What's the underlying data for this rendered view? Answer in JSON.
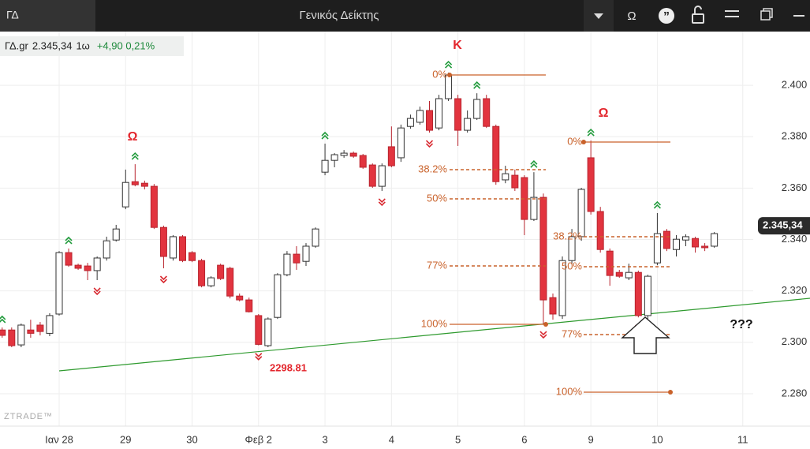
{
  "header": {
    "tab": "ΓΔ",
    "title": "Γενικός Δείκτης",
    "font_button": "Ω"
  },
  "chart_data": {
    "type": "candlestick",
    "info": {
      "symbol": "ΓΔ.gr",
      "price": "2.345,34",
      "interval": "1ω",
      "change": "+4,90 0,21%"
    },
    "watermark": "ZTRADE™",
    "last_price": {
      "value": 2345.34,
      "label": "2.345,34"
    },
    "up_color": "#ffffff",
    "down_color": "#e2343f",
    "grid": true,
    "x": [
      -6,
      -5,
      -4,
      -3,
      -2,
      -1,
      0,
      1,
      2,
      3,
      4,
      5,
      6,
      7,
      8,
      9,
      10,
      11,
      12,
      13,
      14,
      15,
      16,
      17,
      18,
      19,
      20,
      21,
      22,
      23,
      24,
      25,
      26,
      27,
      28,
      29,
      30,
      31,
      32,
      33,
      34,
      35,
      36,
      37,
      38,
      39,
      40,
      41,
      42,
      43,
      44,
      45,
      46,
      47,
      48,
      49,
      50,
      51,
      52,
      53,
      54,
      55,
      56,
      57,
      58,
      59,
      60,
      61,
      62,
      63,
      64,
      65,
      66,
      67,
      68,
      69
    ],
    "open": [
      2304.8,
      2304.8,
      2299.0,
      2304.8,
      2306.7,
      2303.5,
      2311.0,
      2334.9,
      2330.0,
      2329.7,
      2327.9,
      2332.8,
      2339.8,
      2352.7,
      2362.5,
      2361.9,
      2360.7,
      2344.7,
      2332.8,
      2341.1,
      2334.9,
      2331.8,
      2322.0,
      2330.0,
      2328.8,
      2318.0,
      2316.5,
      2310.4,
      2298.7,
      2309.7,
      2326.3,
      2334.3,
      2331.5,
      2337.4,
      2366.2,
      2370.8,
      2372.7,
      2373.6,
      2372.7,
      2369.0,
      2360.7,
      2376.1,
      2371.8,
      2384.0,
      2385.6,
      2390.2,
      2383.4,
      2394.8,
      2394.8,
      2382.5,
      2387.1,
      2394.8,
      2384.0,
      2363.2,
      2365.0,
      2364.1,
      2347.8,
      2356.4,
      2317.4,
      2310.4,
      2331.8,
      2341.1,
      2371.8,
      2350.9,
      2335.5,
      2327.2,
      2325.1,
      2327.2,
      2310.4,
      2330.9,
      2343.2,
      2336.1,
      2339.8,
      2340.4,
      2337.4,
      2337.4
    ],
    "high": [
      2305.8,
      2305.8,
      2307.3,
      2308.8,
      2307.9,
      2311.3,
      2335.5,
      2336.5,
      2330.6,
      2330.9,
      2333.4,
      2341.1,
      2345.7,
      2367.2,
      2369.3,
      2362.9,
      2361.6,
      2345.4,
      2341.7,
      2341.7,
      2335.5,
      2332.5,
      2325.7,
      2330.6,
      2329.4,
      2319.0,
      2317.4,
      2311.0,
      2309.7,
      2326.9,
      2335.5,
      2337.4,
      2338.6,
      2344.7,
      2377.3,
      2373.6,
      2374.8,
      2374.2,
      2373.3,
      2369.6,
      2369.6,
      2384.0,
      2384.7,
      2388.6,
      2391.7,
      2393.9,
      2396.3,
      2404.9,
      2396.3,
      2390.2,
      2396.9,
      2396.3,
      2384.7,
      2368.7,
      2367.2,
      2365.0,
      2366.2,
      2357.9,
      2319.0,
      2333.4,
      2344.1,
      2360.1,
      2378.5,
      2352.7,
      2336.5,
      2328.2,
      2330.6,
      2327.9,
      2326.3,
      2350.3,
      2344.1,
      2341.7,
      2342.0,
      2341.1,
      2338.6,
      2342.9
    ],
    "low": [
      2301.8,
      2298.1,
      2298.1,
      2301.8,
      2302.7,
      2302.4,
      2310.4,
      2329.4,
      2328.2,
      2324.2,
      2324.2,
      2331.8,
      2339.2,
      2351.8,
      2360.7,
      2359.5,
      2344.1,
      2328.8,
      2331.8,
      2331.2,
      2331.2,
      2321.4,
      2321.4,
      2324.2,
      2317.1,
      2315.9,
      2311.6,
      2298.81,
      2298.1,
      2309.1,
      2325.7,
      2328.2,
      2329.7,
      2336.8,
      2365.0,
      2368.1,
      2371.8,
      2371.8,
      2367.5,
      2360.1,
      2358.9,
      2368.1,
      2370.2,
      2383.1,
      2384.7,
      2381.6,
      2382.5,
      2393.9,
      2376.4,
      2381.6,
      2386.5,
      2383.4,
      2361.3,
      2361.9,
      2358.9,
      2341.7,
      2347.2,
      2307.3,
      2308.8,
      2309.1,
      2330.3,
      2339.5,
      2349.7,
      2334.9,
      2322.0,
      2325.1,
      2324.2,
      2309.7,
      2309.1,
      2330.0,
      2335.5,
      2333.4,
      2337.4,
      2334.9,
      2335.5,
      2336.8
    ],
    "close": [
      2302.7,
      2298.7,
      2306.7,
      2303.5,
      2304.2,
      2310.4,
      2334.9,
      2330.0,
      2328.8,
      2327.9,
      2332.8,
      2339.5,
      2344.1,
      2362.2,
      2361.3,
      2360.7,
      2344.7,
      2333.4,
      2341.1,
      2331.8,
      2331.8,
      2322.0,
      2325.1,
      2324.8,
      2318.0,
      2316.5,
      2311.9,
      2299.2,
      2309.1,
      2326.3,
      2334.3,
      2330.9,
      2337.4,
      2344.1,
      2370.8,
      2373.0,
      2373.6,
      2372.4,
      2368.1,
      2360.7,
      2368.7,
      2368.7,
      2383.4,
      2387.1,
      2390.2,
      2382.5,
      2394.8,
      2404.0,
      2382.5,
      2387.1,
      2394.5,
      2384.0,
      2362.5,
      2365.6,
      2360.1,
      2347.8,
      2356.4,
      2316.5,
      2311.0,
      2331.8,
      2341.1,
      2359.5,
      2350.9,
      2336.1,
      2326.0,
      2325.7,
      2327.2,
      2310.4,
      2325.7,
      2342.3,
      2336.5,
      2340.1,
      2341.1,
      2337.1,
      2336.8,
      2342.3
    ],
    "pivot_highs": [
      -6,
      1,
      8,
      28,
      41,
      44,
      50,
      56,
      63
    ],
    "pivot_lows": [
      4,
      11,
      21,
      34,
      39,
      51,
      61
    ],
    "xlim": [
      -6.23,
      73.1
    ],
    "xticks": [
      {
        "value": 0,
        "label": "Ιαν 28"
      },
      {
        "value": 7,
        "label": "29"
      },
      {
        "value": 14,
        "label": "30"
      },
      {
        "value": 21,
        "label": "Φεβ 2"
      },
      {
        "value": 28,
        "label": "3"
      },
      {
        "value": 35,
        "label": "4"
      },
      {
        "value": 42,
        "label": "5"
      },
      {
        "value": 49,
        "label": "6"
      },
      {
        "value": 56,
        "label": "9"
      },
      {
        "value": 63,
        "label": "10"
      },
      {
        "value": 72,
        "label": "11"
      }
    ],
    "ylim": [
      2267.4,
      2420.9
    ],
    "yticks": [
      {
        "value": 2280,
        "label": "2.280"
      },
      {
        "value": 2300,
        "label": "2.300"
      },
      {
        "value": 2320,
        "label": "2.320"
      },
      {
        "value": 2340,
        "label": "2.340"
      },
      {
        "value": 2360,
        "label": "2.360"
      },
      {
        "value": 2380,
        "label": "2.380"
      },
      {
        "value": 2400,
        "label": "2.400"
      }
    ],
    "annotations": {
      "top": "Κ",
      "omega": "Ω",
      "low_label": 2298.81,
      "question": "???",
      "fib_labels": [
        "0%",
        "38.2%",
        "50%",
        "77%",
        "100%"
      ]
    }
  }
}
